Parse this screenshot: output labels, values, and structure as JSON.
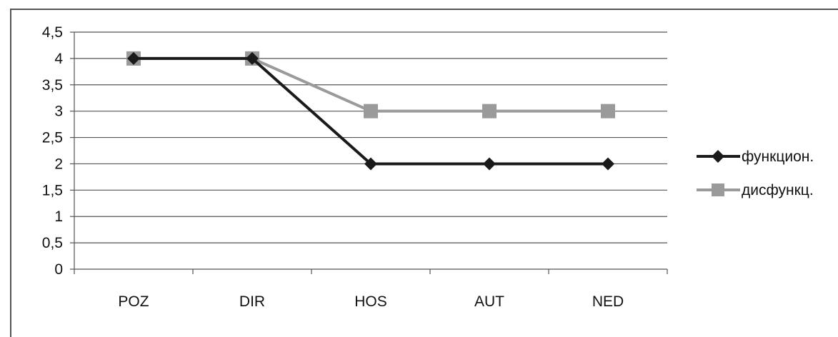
{
  "chart_data": {
    "type": "line",
    "title": "",
    "xlabel": "",
    "ylabel": "",
    "categories": [
      "POZ",
      "DIR",
      "HOS",
      "AUT",
      "NED"
    ],
    "ylim": [
      0,
      4.5
    ],
    "yticks": [
      "0",
      "0,5",
      "1",
      "1,5",
      "2",
      "2,5",
      "3",
      "3,5",
      "4",
      "4,5"
    ],
    "grid": true,
    "legend_position": "right",
    "series": [
      {
        "name": "функцион.",
        "values": [
          4,
          4,
          2,
          2,
          2
        ],
        "color": "#1a1a1a",
        "marker": "diamond"
      },
      {
        "name": "дисфункц.",
        "values": [
          4,
          4,
          3,
          3,
          3
        ],
        "color": "#9a9a9a",
        "marker": "square"
      }
    ]
  }
}
